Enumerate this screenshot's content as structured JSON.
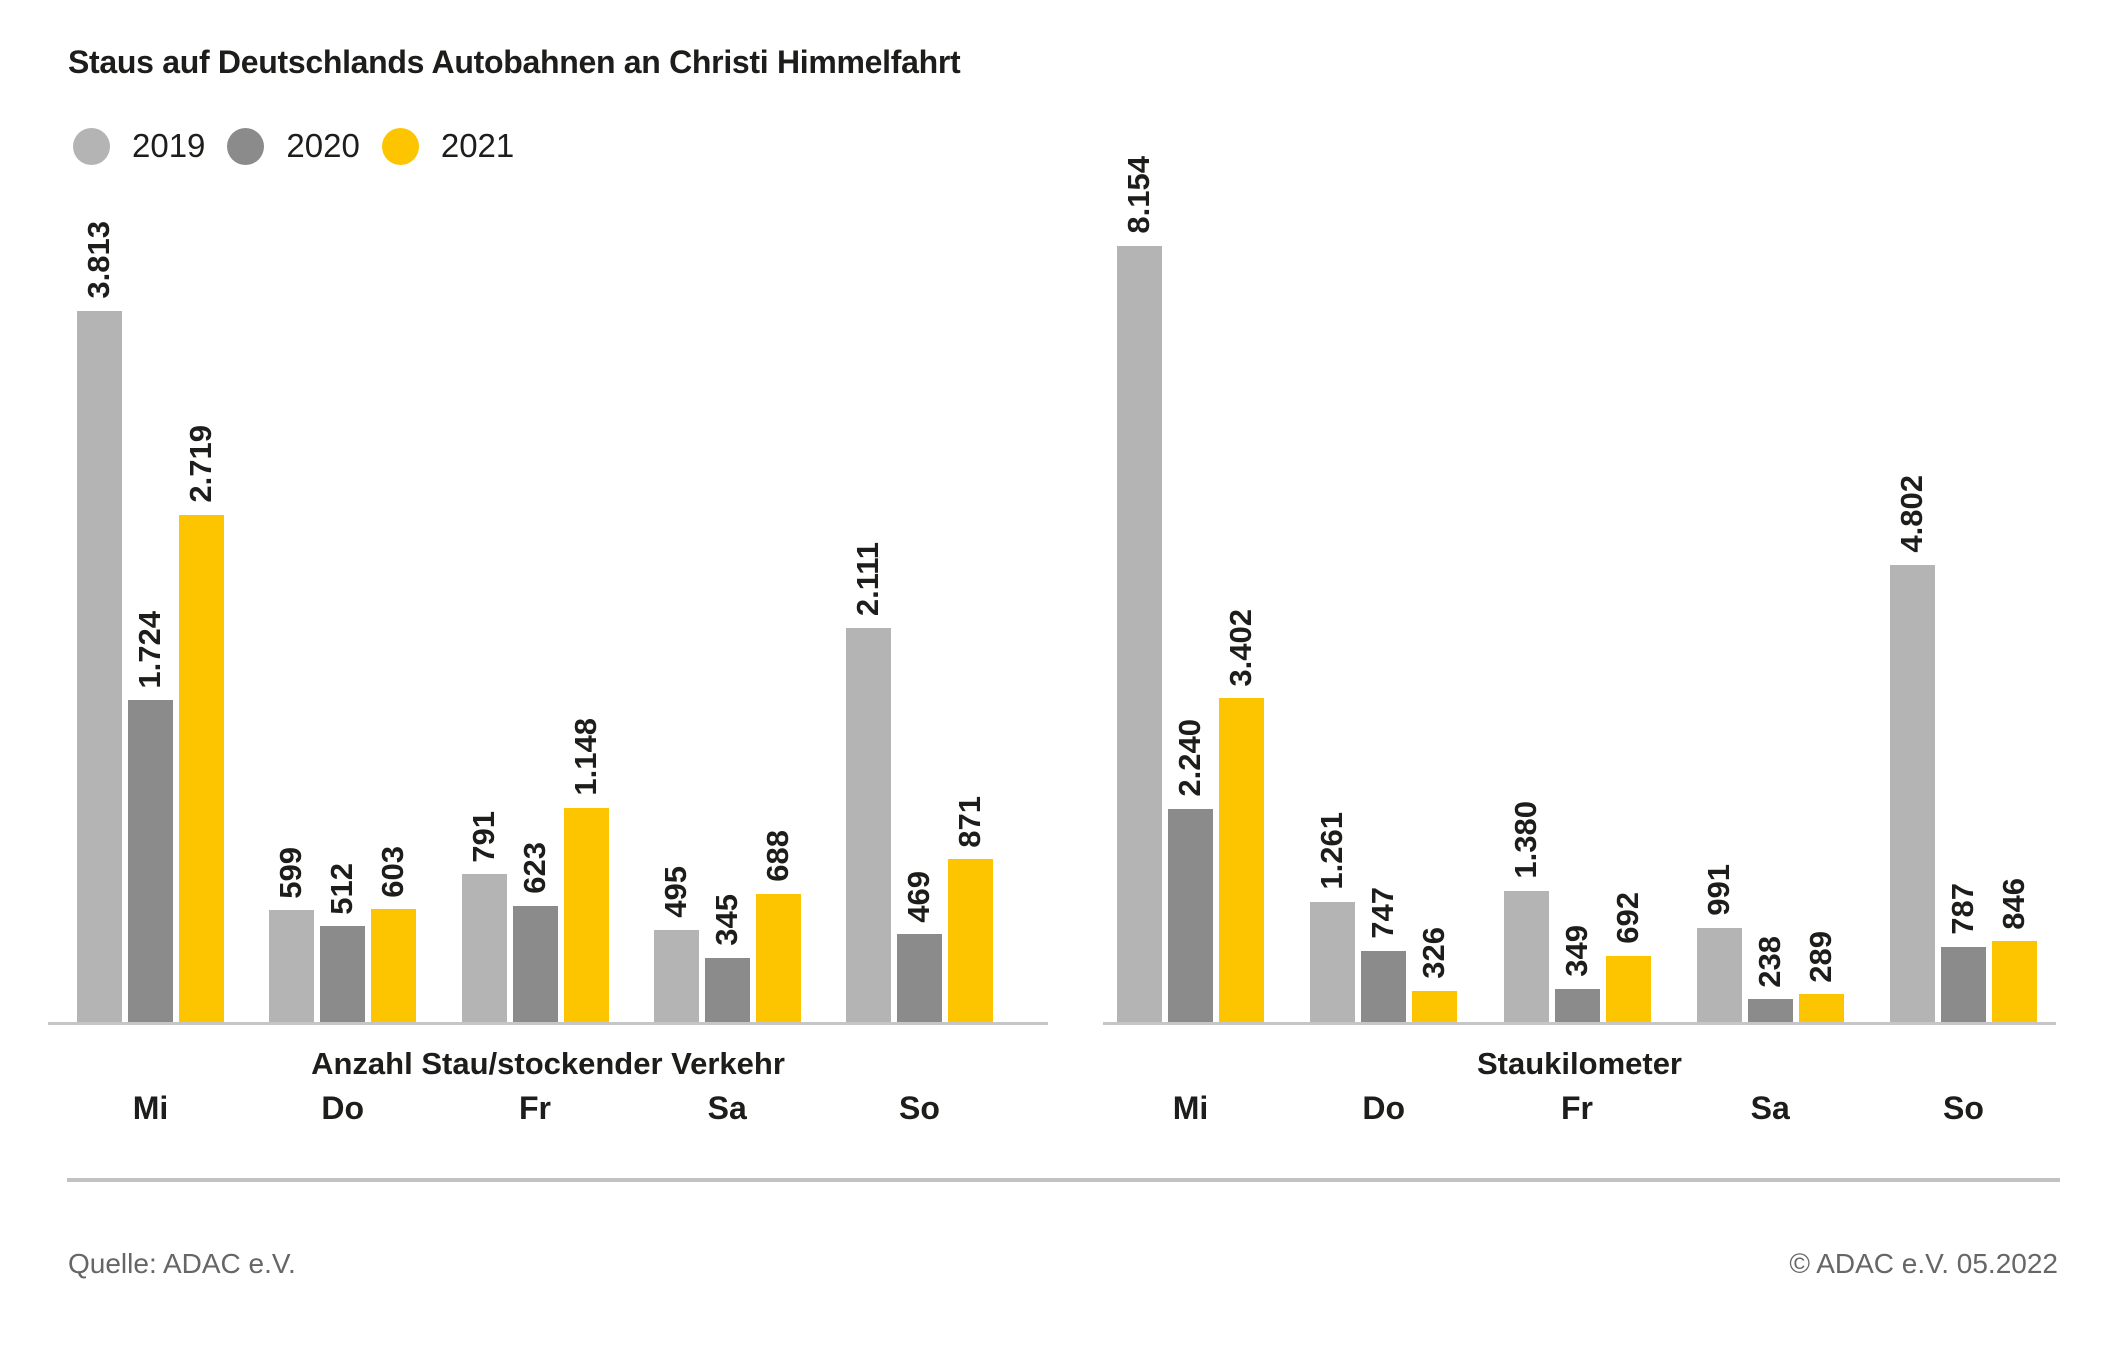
{
  "title": "Staus auf Deutschlands Autobahnen an Christi Himmelfahrt",
  "legend": [
    {
      "label": "2019",
      "color": "#b4b4b4"
    },
    {
      "label": "2020",
      "color": "#8b8b8b"
    },
    {
      "label": "2021",
      "color": "#fdc500"
    }
  ],
  "colors": {
    "text": "#1d1d1b",
    "axis_line": "#c6c6c6",
    "divider_line": "#c2c2c2",
    "footer_text": "#666666"
  },
  "footer": {
    "source": "Quelle: ADAC e.V.",
    "copyright": "© ADAC e.V. 05.2022"
  },
  "chart_data": [
    {
      "type": "bar",
      "title": "Anzahl Stau/stockender Verkehr",
      "categories": [
        "Mi",
        "Do",
        "Fr",
        "Sa",
        "So"
      ],
      "series": [
        {
          "name": "2019",
          "values": [
            3813,
            599,
            791,
            495,
            2111
          ],
          "labels": [
            "3.813",
            "599",
            "791",
            "495",
            "2.111"
          ]
        },
        {
          "name": "2020",
          "values": [
            1724,
            512,
            623,
            345,
            469
          ],
          "labels": [
            "1.724",
            "512",
            "623",
            "345",
            "469"
          ]
        },
        {
          "name": "2021",
          "values": [
            2719,
            603,
            1148,
            688,
            871
          ],
          "labels": [
            "2.719",
            "603",
            "1.148",
            "688",
            "871"
          ]
        }
      ],
      "ylim": [
        0,
        3813
      ],
      "grid": false,
      "legend_position": "top-left",
      "value_label_rotation": 90
    },
    {
      "type": "bar",
      "title": "Staukilometer",
      "categories": [
        "Mi",
        "Do",
        "Fr",
        "Sa",
        "So"
      ],
      "series": [
        {
          "name": "2019",
          "values": [
            8154,
            1261,
            1380,
            991,
            4802
          ],
          "labels": [
            "8.154",
            "1.261",
            "1.380",
            "991",
            "4.802"
          ]
        },
        {
          "name": "2020",
          "values": [
            2240,
            747,
            349,
            238,
            787
          ],
          "labels": [
            "2.240",
            "747",
            "349",
            "238",
            "787"
          ]
        },
        {
          "name": "2021",
          "values": [
            3402,
            326,
            692,
            289,
            846
          ],
          "labels": [
            "3.402",
            "326",
            "692",
            "289",
            "846"
          ]
        }
      ],
      "ylim": [
        0,
        8154
      ],
      "grid": false,
      "legend_position": "top-left",
      "value_label_rotation": 90
    }
  ]
}
